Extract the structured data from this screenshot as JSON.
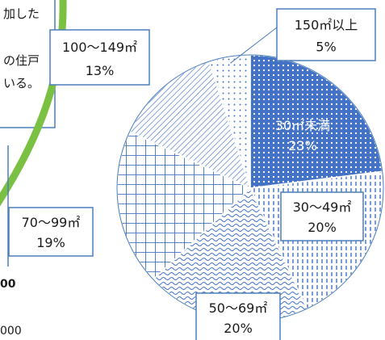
{
  "note": {
    "lines": [
      "加した",
      "の住戸",
      "いる。"
    ]
  },
  "left_fragments": {
    "bold_value": "00",
    "axis_value": "000"
  },
  "chart_data": {
    "type": "pie",
    "title": "",
    "slices": [
      {
        "label": "30㎡未満",
        "value": 23,
        "pct_text": "23%",
        "pattern": "dots"
      },
      {
        "label": "30～49㎡",
        "value": 20,
        "pct_text": "20%",
        "pattern": "vdash"
      },
      {
        "label": "50～69㎡",
        "value": 20,
        "pct_text": "20%",
        "pattern": "wave"
      },
      {
        "label": "70～99㎡",
        "value": 19,
        "pct_text": "19%",
        "pattern": "grid"
      },
      {
        "label": "100～149㎡",
        "value": 13,
        "pct_text": "13%",
        "pattern": "diag"
      },
      {
        "label": "150㎡以上",
        "value": 5,
        "pct_text": "5%",
        "pattern": "sparse"
      }
    ],
    "colors": {
      "slice": "#4472c4",
      "fill_dots": "#4472c4",
      "border": "#4a7ebb",
      "arc": "#7ac143"
    },
    "start_angle_deg": 0,
    "direction": "clockwise",
    "legend": "none"
  }
}
